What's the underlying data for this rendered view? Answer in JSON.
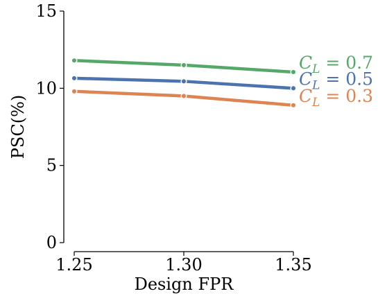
{
  "chart_data": {
    "type": "line",
    "xlabel": "Design FPR",
    "ylabel": "PSC(%)",
    "x": [
      1.25,
      1.3,
      1.35
    ],
    "x_tick_labels": [
      "1.25",
      "1.30",
      "1.35"
    ],
    "y_ticks": [
      0,
      5,
      10,
      15
    ],
    "ylim": [
      0,
      15
    ],
    "xlim": [
      1.25,
      1.35
    ],
    "grid": false,
    "legend": "direct labels at line ends (right)",
    "series": [
      {
        "name": "C_L = 0.7",
        "label_main": "C",
        "label_sub": "L",
        "label_rest": " = 0.7",
        "color": "#55a868",
        "values": [
          11.8,
          11.5,
          11.05
        ]
      },
      {
        "name": "C_L = 0.5",
        "label_main": "C",
        "label_sub": "L",
        "label_rest": " = 0.5",
        "color": "#4c72b0",
        "values": [
          10.65,
          10.45,
          10.0
        ]
      },
      {
        "name": "C_L = 0.3",
        "label_main": "C",
        "label_sub": "L",
        "label_rest": " = 0.3",
        "color": "#dd8452",
        "values": [
          9.8,
          9.5,
          8.9
        ]
      }
    ]
  }
}
